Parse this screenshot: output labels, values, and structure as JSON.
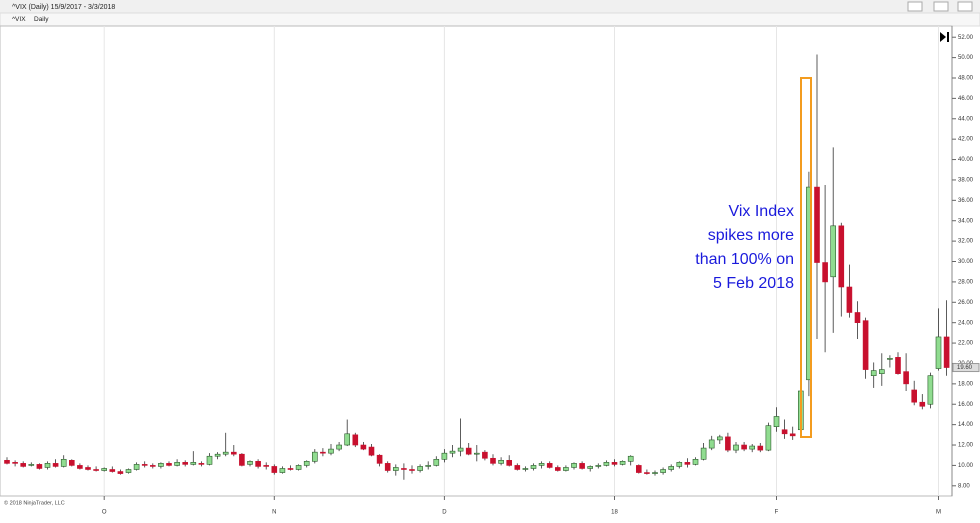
{
  "window": {
    "title": "^VIX (Daily)  15/9/2017 - 3/3/2018",
    "instrument": "^VIX",
    "period": "Daily"
  },
  "chart_data": {
    "type": "candlestick",
    "open": [
      10.5,
      10.3,
      10.2,
      10.0,
      10.1,
      9.8,
      10.2,
      9.9,
      10.5,
      10.0,
      9.8,
      9.6,
      9.5,
      9.6,
      9.4,
      9.3,
      9.6,
      10.1,
      10.0,
      9.9,
      10.2,
      10.0,
      10.3,
      10.1,
      10.2,
      10.1,
      10.9,
      11.1,
      11.3,
      11.1,
      10.1,
      10.4,
      10.0,
      9.9,
      9.3,
      9.7,
      9.6,
      10.0,
      10.4,
      11.3,
      11.2,
      11.6,
      12.0,
      13.0,
      12.0,
      11.8,
      11.0,
      10.2,
      9.5,
      9.7,
      9.6,
      9.5,
      10.0,
      10.0,
      10.6,
      11.2,
      11.4,
      11.7,
      11.1,
      11.3,
      10.7,
      10.2,
      10.5,
      10.0,
      9.6,
      9.7,
      10.0,
      10.2,
      9.8,
      9.5,
      9.8,
      10.2,
      9.7,
      9.9,
      10.0,
      10.3,
      10.1,
      10.4,
      10.0,
      9.3,
      9.2,
      9.3,
      9.6,
      9.9,
      10.3,
      10.1,
      10.6,
      11.7,
      12.5,
      12.8,
      11.5,
      12.0,
      11.6,
      11.9,
      11.5,
      13.8,
      13.5,
      13.1,
      13.5,
      18.4,
      37.3,
      29.9,
      28.5,
      33.5,
      27.5,
      25.0,
      24.2,
      18.8,
      19.0,
      20.5,
      20.6,
      19.2,
      17.4,
      16.2,
      16.0,
      19.5,
      22.6
    ],
    "high": [
      10.8,
      10.5,
      10.4,
      10.3,
      10.2,
      10.4,
      10.6,
      11.0,
      10.6,
      10.2,
      10.0,
      9.9,
      9.8,
      9.9,
      9.6,
      9.7,
      10.3,
      10.4,
      10.2,
      10.3,
      10.4,
      10.6,
      10.5,
      11.4,
      10.4,
      11.2,
      11.3,
      13.2,
      12.0,
      11.2,
      10.5,
      10.6,
      10.3,
      10.1,
      9.9,
      10.0,
      10.1,
      10.5,
      11.6,
      11.7,
      12.1,
      12.3,
      14.5,
      13.2,
      12.3,
      12.1,
      11.1,
      10.4,
      10.1,
      10.2,
      10.0,
      10.1,
      10.4,
      10.9,
      11.6,
      12.0,
      14.6,
      12.2,
      12.0,
      11.5,
      11.1,
      10.8,
      11.0,
      10.2,
      9.9,
      10.2,
      10.4,
      10.4,
      10.0,
      10.0,
      10.3,
      10.4,
      10.0,
      10.2,
      10.5,
      10.6,
      10.5,
      11.0,
      10.1,
      9.6,
      9.5,
      9.8,
      10.1,
      10.4,
      10.7,
      10.8,
      12.2,
      12.9,
      13.0,
      13.2,
      12.3,
      12.3,
      12.1,
      12.2,
      14.2,
      15.7,
      14.5,
      13.8,
      17.3,
      38.8,
      50.3,
      37.5,
      41.2,
      33.8,
      29.7,
      26.1,
      24.5,
      20.1,
      21.0,
      20.8,
      21.1,
      21.0,
      18.3,
      17.0,
      19.1,
      25.4,
      26.2
    ],
    "low": [
      10.1,
      9.9,
      9.8,
      9.9,
      9.6,
      9.6,
      9.8,
      9.8,
      9.9,
      9.6,
      9.5,
      9.4,
      9.4,
      9.3,
      9.1,
      9.2,
      9.5,
      9.8,
      9.7,
      9.7,
      9.9,
      9.9,
      9.9,
      10.0,
      9.9,
      10.0,
      10.6,
      10.9,
      10.9,
      9.9,
      9.9,
      9.7,
      9.6,
      9.1,
      9.2,
      9.5,
      9.5,
      9.8,
      10.2,
      10.9,
      11.0,
      11.4,
      11.9,
      11.8,
      11.5,
      10.9,
      9.9,
      9.3,
      9.0,
      8.6,
      9.2,
      9.3,
      9.6,
      9.9,
      10.3,
      10.8,
      10.9,
      11.0,
      10.4,
      10.5,
      10.0,
      10.0,
      9.9,
      9.5,
      9.4,
      9.5,
      9.7,
      9.7,
      9.4,
      9.4,
      9.6,
      9.6,
      9.4,
      9.7,
      9.9,
      9.9,
      10.0,
      10.0,
      9.2,
      9.1,
      9.0,
      9.1,
      9.4,
      9.7,
      9.8,
      10.0,
      10.5,
      11.5,
      12.1,
      11.3,
      11.2,
      11.4,
      11.3,
      11.3,
      11.4,
      13.3,
      12.6,
      12.5,
      13.4,
      16.8,
      22.4,
      21.1,
      23.0,
      24.6,
      24.5,
      22.4,
      18.5,
      17.6,
      17.8,
      19.6,
      18.9,
      17.3,
      15.9,
      15.5,
      15.6,
      19.3,
      18.8
    ],
    "close": [
      10.2,
      10.2,
      9.9,
      10.1,
      9.7,
      10.2,
      9.9,
      10.6,
      10.0,
      9.7,
      9.6,
      9.5,
      9.7,
      9.4,
      9.2,
      9.6,
      10.1,
      10.0,
      9.9,
      10.2,
      10.0,
      10.3,
      10.1,
      10.3,
      10.1,
      10.9,
      11.1,
      11.3,
      11.1,
      10.0,
      10.4,
      9.9,
      9.9,
      9.3,
      9.7,
      9.6,
      10.0,
      10.4,
      11.3,
      11.2,
      11.6,
      12.0,
      13.1,
      12.0,
      11.6,
      11.0,
      10.2,
      9.5,
      9.8,
      9.6,
      9.5,
      9.9,
      10.0,
      10.6,
      11.2,
      11.4,
      11.7,
      11.1,
      11.2,
      10.7,
      10.2,
      10.5,
      10.0,
      9.6,
      9.7,
      10.0,
      10.2,
      9.8,
      9.5,
      9.8,
      10.2,
      9.7,
      9.9,
      10.0,
      10.3,
      10.1,
      10.4,
      10.9,
      9.3,
      9.2,
      9.3,
      9.6,
      9.9,
      10.3,
      10.1,
      10.6,
      11.7,
      12.5,
      12.8,
      11.5,
      12.0,
      11.6,
      11.9,
      11.5,
      13.9,
      14.8,
      13.1,
      12.9,
      17.3,
      37.3,
      29.9,
      28.0,
      33.5,
      27.5,
      25.0,
      24.0,
      19.4,
      19.3,
      19.4,
      20.5,
      19.0,
      18.0,
      16.2,
      15.8,
      18.8,
      22.6,
      19.6
    ],
    "up_color": "#90dc90",
    "down_color": "#c8102e",
    "ylim": [
      7,
      53.1
    ],
    "yticks": [
      {
        "value": 8,
        "label": "8.00"
      },
      {
        "value": 10,
        "label": "10.00"
      },
      {
        "value": 12,
        "label": "12.00"
      },
      {
        "value": 14,
        "label": "14.00"
      },
      {
        "value": 16,
        "label": "16.00"
      },
      {
        "value": 18,
        "label": "18.00"
      },
      {
        "value": 20,
        "label": "20.00"
      },
      {
        "value": 22,
        "label": "22.00"
      },
      {
        "value": 24,
        "label": "24.00"
      },
      {
        "value": 26,
        "label": "26.00"
      },
      {
        "value": 28,
        "label": "28.00"
      },
      {
        "value": 30,
        "label": "30.00"
      },
      {
        "value": 32,
        "label": "32.00"
      },
      {
        "value": 34,
        "label": "34.00"
      },
      {
        "value": 36,
        "label": "36.00"
      },
      {
        "value": 38,
        "label": "38.00"
      },
      {
        "value": 40,
        "label": "40.00"
      },
      {
        "value": 42,
        "label": "42.00"
      },
      {
        "value": 44,
        "label": "44.00"
      },
      {
        "value": 46,
        "label": "46.00"
      },
      {
        "value": 48,
        "label": "48.00"
      },
      {
        "value": 50,
        "label": "50.00"
      },
      {
        "value": 52,
        "label": "52.00"
      }
    ],
    "xticks": [
      {
        "value": 12,
        "label": "O"
      },
      {
        "value": 33,
        "label": "N"
      },
      {
        "value": 54,
        "label": "D"
      },
      {
        "value": 75,
        "label": "18"
      },
      {
        "value": 95,
        "label": "F"
      },
      {
        "value": 115,
        "label": "M"
      }
    ],
    "last_price": {
      "value": 19.6,
      "label": "19.60"
    },
    "annotation": [
      "Vix Index",
      "spikes more",
      "than 100% on",
      "5 Feb 2018"
    ],
    "footer": "© 2018 NinjaTrader, LLC"
  }
}
